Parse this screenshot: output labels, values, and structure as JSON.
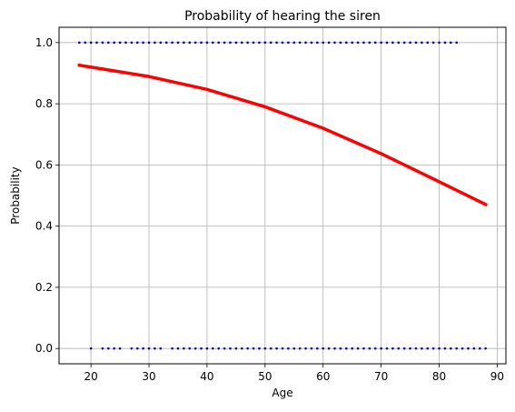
{
  "chart_data": {
    "type": "scatter",
    "title": "Probability of hearing the siren",
    "xlabel": "Age",
    "ylabel": "Probability",
    "xlim": [
      14.5,
      91.5
    ],
    "ylim": [
      -0.05,
      1.05
    ],
    "x_ticks": [
      20,
      30,
      40,
      50,
      60,
      70,
      80,
      90
    ],
    "y_ticks": [
      0.0,
      0.2,
      0.4,
      0.6,
      0.8,
      1.0
    ],
    "x_tick_labels": [
      "20",
      "30",
      "40",
      "50",
      "60",
      "70",
      "80",
      "90"
    ],
    "y_tick_labels": [
      "0.0",
      "0.2",
      "0.4",
      "0.6",
      "0.8",
      "1.0"
    ],
    "grid": true,
    "legend": "none",
    "series": [
      {
        "kind": "scatter",
        "color": "#0000cc",
        "points_y1": [
          18,
          19,
          20,
          21,
          22,
          23,
          24,
          25,
          26,
          27,
          28,
          29,
          30,
          31,
          32,
          33,
          34,
          35,
          36,
          37,
          38,
          39,
          40,
          41,
          42,
          43,
          44,
          45,
          46,
          47,
          48,
          49,
          50,
          51,
          52,
          53,
          54,
          55,
          56,
          57,
          58,
          59,
          60,
          61,
          62,
          63,
          64,
          65,
          66,
          67,
          68,
          69,
          70,
          71,
          72,
          73,
          74,
          75,
          76,
          77,
          78,
          79,
          80,
          81,
          82,
          83
        ],
        "points_y0": [
          20,
          22,
          23,
          24,
          25,
          27,
          28,
          29,
          30,
          31,
          32,
          34,
          35,
          36,
          37,
          38,
          39,
          40,
          41,
          42,
          43,
          44,
          45,
          46,
          47,
          48,
          49,
          50,
          51,
          52,
          53,
          54,
          55,
          56,
          57,
          58,
          59,
          60,
          61,
          62,
          63,
          64,
          65,
          66,
          67,
          68,
          69,
          70,
          71,
          72,
          73,
          74,
          75,
          76,
          77,
          78,
          79,
          80,
          81,
          82,
          83,
          84,
          85,
          86,
          87,
          88
        ]
      },
      {
        "kind": "line",
        "color": "#ff0000",
        "x": [
          18,
          30,
          40,
          50,
          60,
          70,
          80,
          88
        ],
        "y": [
          0.926,
          0.889,
          0.847,
          0.79,
          0.72,
          0.637,
          0.545,
          0.471
        ]
      }
    ]
  }
}
